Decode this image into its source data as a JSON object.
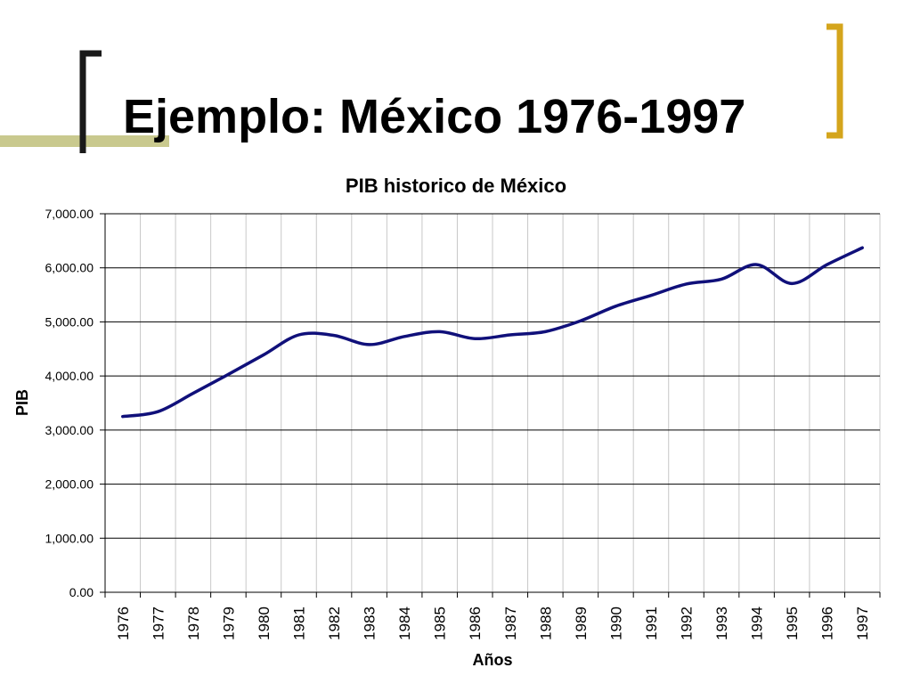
{
  "slide": {
    "title": "Ejemplo: México 1976-1997"
  },
  "colors": {
    "line": "#10107a",
    "accent_bar": "#c9c98e",
    "bracket_left": "#1a1a1a",
    "bracket_right": "#d4a51c",
    "grid": "#000000",
    "vgrid": "#c8c8c8"
  },
  "chart_data": {
    "type": "line",
    "title": "PIB historico de México",
    "xlabel": "Años",
    "ylabel": "PIB",
    "categories": [
      "1976",
      "1977",
      "1978",
      "1979",
      "1980",
      "1981",
      "1982",
      "1983",
      "1984",
      "1985",
      "1986",
      "1987",
      "1988",
      "1989",
      "1990",
      "1991",
      "1992",
      "1993",
      "1994",
      "1995",
      "1996",
      "1997"
    ],
    "series": [
      {
        "values": [
          3250,
          3340,
          3680,
          4030,
          4390,
          4760,
          4750,
          4580,
          4730,
          4820,
          4690,
          4760,
          4820,
          5020,
          5290,
          5490,
          5700,
          5790,
          6060,
          5710,
          6060,
          6370
        ]
      }
    ],
    "ylim": [
      0,
      7000
    ],
    "yticks": [
      0,
      1000,
      2000,
      3000,
      4000,
      5000,
      6000,
      7000
    ],
    "ytick_labels": [
      "0.00",
      "1,000.00",
      "2,000.00",
      "3,000.00",
      "4,000.00",
      "5,000.00",
      "6,000.00",
      "7,000.00"
    ],
    "grid": true,
    "legend": "none"
  }
}
